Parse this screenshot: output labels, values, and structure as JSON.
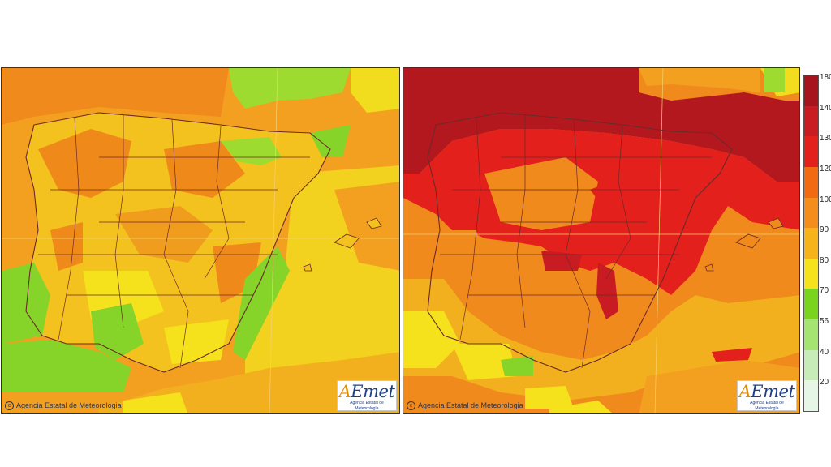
{
  "maps": [
    {
      "id": "left",
      "copyright": "Agencia Estatal de Meteorologia",
      "logo_text": "AEmet",
      "logo_subtitle": "Agencia Estatal de Meteorología"
    },
    {
      "id": "right",
      "copyright": "Agencia Estatal de Meteorologia",
      "logo_text": "AEmet",
      "logo_subtitle": "Agencia Estatal de Meteorología"
    }
  ],
  "legend": {
    "values": [
      "180",
      "140",
      "130",
      "120",
      "100",
      "90",
      "80",
      "70",
      "56",
      "40",
      "20"
    ],
    "colors": [
      "#a8141e",
      "#c81c22",
      "#e3201c",
      "#f26a12",
      "#f58d1c",
      "#f7b41a",
      "#f5e21c",
      "#7ad41e",
      "#a6e472",
      "#c8ecb8",
      "#e6f6e6"
    ]
  },
  "colors": {
    "sea_warm": "#f3a020",
    "land_yellow": "#f2dc1e",
    "green": "#86d42a",
    "orange": "#ef7e1a",
    "red": "#e3201c",
    "dark_red": "#b3181f",
    "border": "#6a2a2a",
    "graticule": "#f5d070"
  }
}
